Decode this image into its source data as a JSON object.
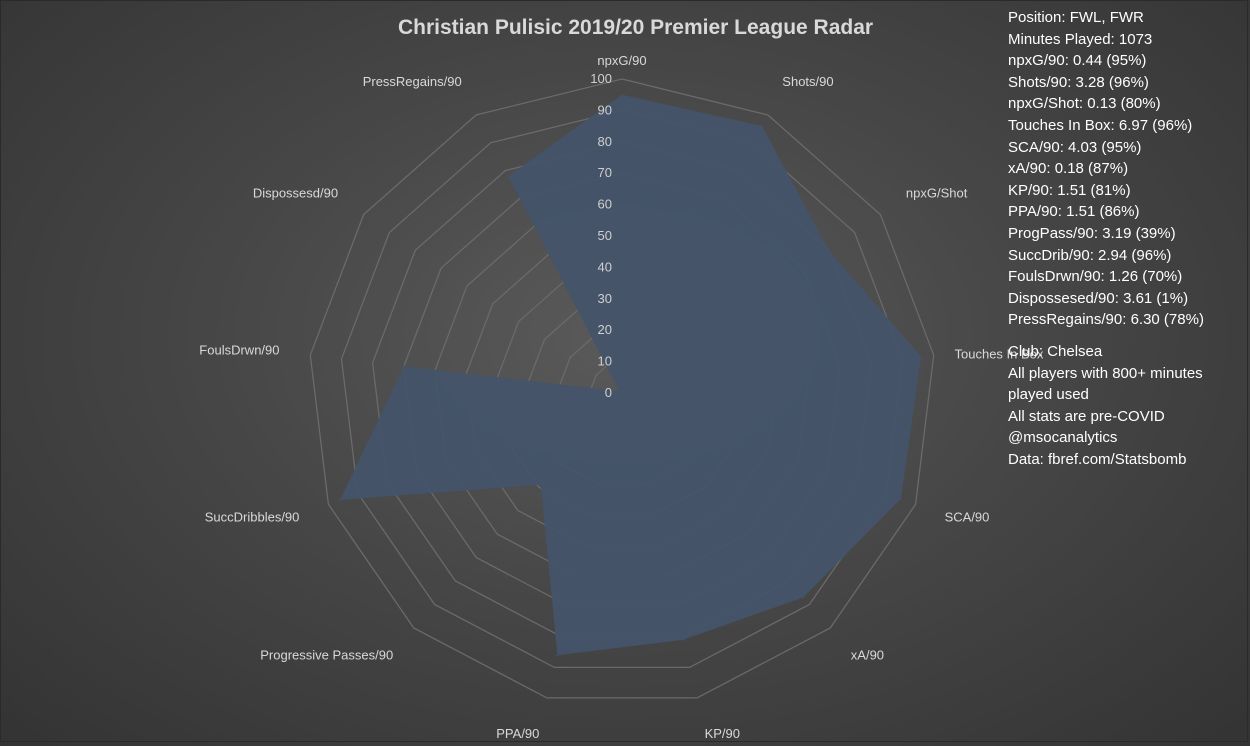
{
  "chart_data": {
    "type": "radar",
    "title": "Christian Pulisic 2019/20 Premier League Radar",
    "axes": [
      "npxG/90",
      "Shots/90",
      "npxG/Shot",
      "Touches In Box",
      "SCA/90",
      "xA/90",
      "KP/90",
      "PPA/90",
      "Progressive Passes/90",
      "SuccDribbles/90",
      "FoulsDrwn/90",
      "Dispossesd/90",
      "PressRegains/90"
    ],
    "values": [
      95,
      96,
      80,
      96,
      95,
      87,
      81,
      86,
      39,
      96,
      70,
      1,
      78
    ],
    "rlim": [
      0,
      100
    ],
    "ticks": [
      "0",
      "10",
      "20",
      "30",
      "40",
      "50",
      "60",
      "70",
      "80",
      "90",
      "100"
    ],
    "grid": true,
    "fill_color": "#44546a"
  },
  "info": {
    "stats": [
      "Position: FWL, FWR",
      "Minutes Played: 1073",
      "npxG/90: 0.44 (95%)",
      "Shots/90: 3.28 (96%)",
      "npxG/Shot: 0.13 (80%)",
      "Touches In Box: 6.97 (96%)",
      "SCA/90: 4.03 (95%)",
      "xA/90: 0.18 (87%)",
      "KP/90: 1.51 (81%)",
      "PPA/90: 1.51 (86%)",
      "ProgPass/90: 3.19 (39%)",
      "SuccDrib/90: 2.94 (96%)",
      "FoulsDrwn/90: 1.26 (70%)",
      "Dispossesed/90: 3.61 (1%)",
      "PressRegains/90: 6.30 (78%)"
    ],
    "notes": [
      "Club: Chelsea",
      "All players with 800+ minutes",
      "played used",
      "All stats are pre-COVID",
      "@msocanalytics",
      "Data: fbref.com/Statsbomb"
    ]
  }
}
